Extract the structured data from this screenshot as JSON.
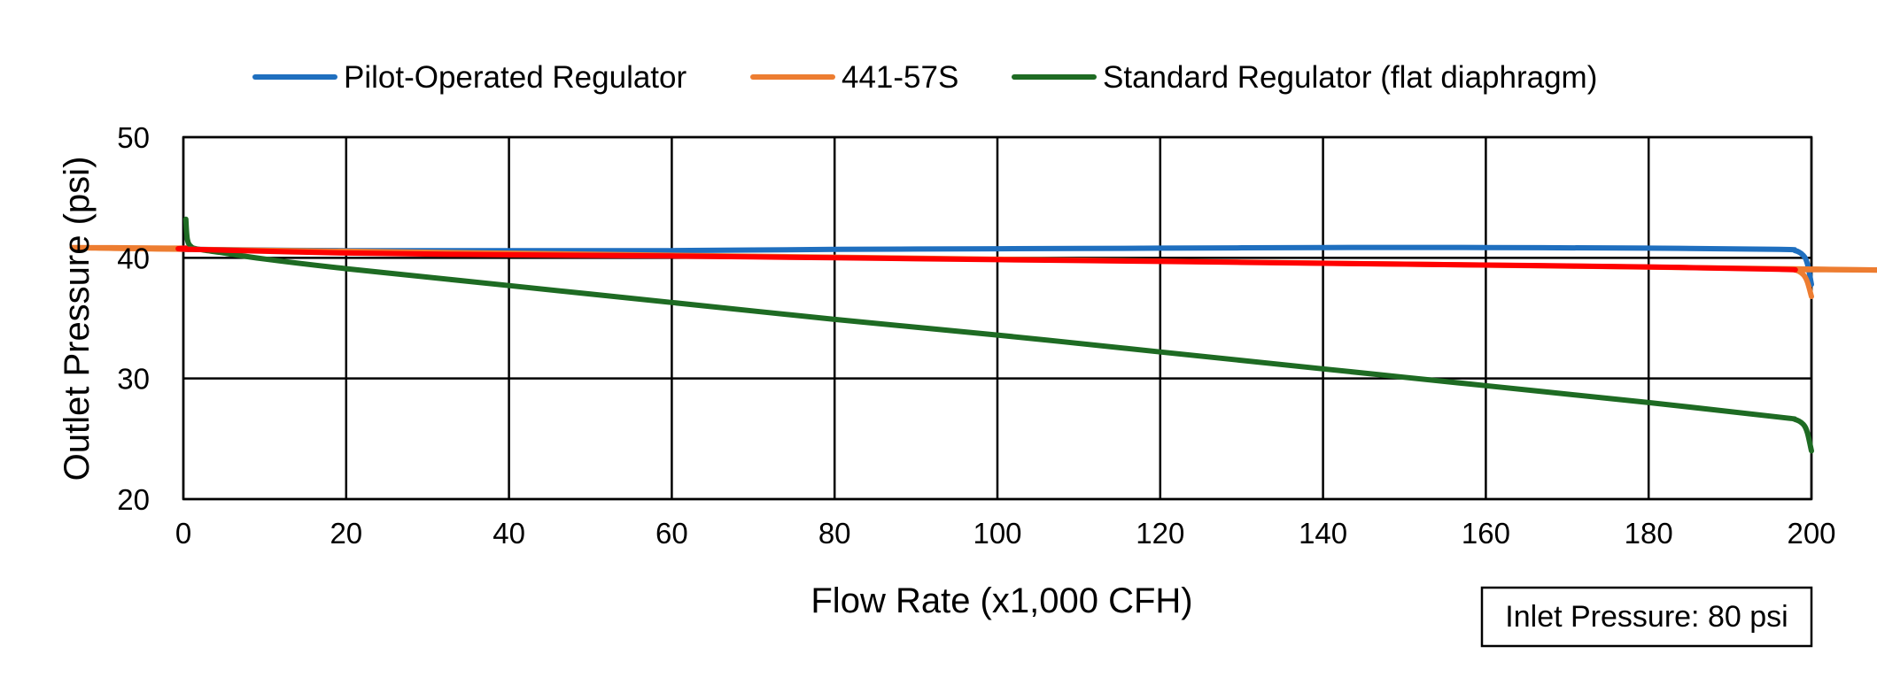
{
  "chart_data": {
    "type": "line",
    "xlabel": "Flow Rate (x1,000 CFH)",
    "ylabel": "Outlet Pressure (psi)",
    "xlim": [
      0,
      200
    ],
    "ylim": [
      20,
      50
    ],
    "x_ticks": [
      0,
      20,
      40,
      60,
      80,
      100,
      120,
      140,
      160,
      180,
      200
    ],
    "y_ticks": [
      20,
      30,
      40,
      50
    ],
    "grid": true,
    "legend_position": "top",
    "annotation": "Inlet Pressure: 80 psi",
    "legend": [
      {
        "name": "Pilot-Operated Regulator",
        "color": "#1f6fbf"
      },
      {
        "name": "441-57S",
        "color": "#ed7d31"
      },
      {
        "name": "Standard Regulator (flat diaphragm)",
        "color": "#1e6b23"
      }
    ],
    "series": [
      {
        "name": "Standard Regulator (flat diaphragm)",
        "color": "#1e6b23",
        "x": [
          0.3,
          0.5,
          1,
          2,
          5,
          10,
          20,
          40,
          60,
          80,
          100,
          120,
          140,
          160,
          180,
          196,
          198,
          199,
          199.5,
          200
        ],
        "y": [
          43.2,
          41.5,
          40.9,
          40.7,
          40.4,
          39.9,
          39.1,
          37.7,
          36.3,
          34.9,
          33.6,
          32.2,
          30.8,
          29.4,
          28.0,
          26.8,
          26.6,
          26.2,
          25.5,
          24.0
        ]
      },
      {
        "name": "Pilot-Operated Regulator",
        "color": "#1f6fbf",
        "x": [
          0.3,
          1,
          20,
          40,
          60,
          80,
          100,
          120,
          140,
          160,
          180,
          196,
          198,
          199,
          199.5,
          200
        ],
        "y": [
          40.8,
          40.7,
          40.6,
          40.6,
          40.6,
          40.7,
          40.75,
          40.8,
          40.85,
          40.85,
          40.8,
          40.7,
          40.6,
          40.2,
          39.5,
          37.8
        ]
      },
      {
        "name": "441-57S",
        "color": "#ed7d31",
        "x": [
          0.3,
          1,
          196,
          198,
          199,
          199.5,
          200
        ],
        "y": [
          40.8,
          40.7,
          39.1,
          39.0,
          38.6,
          38.0,
          36.8
        ]
      },
      {
        "name": "",
        "color": "#ff0000",
        "x": [
          0.3,
          1,
          20,
          40,
          60,
          80,
          100,
          120,
          140,
          160,
          180,
          196,
          198
        ],
        "y": [
          40.8,
          40.7,
          40.4,
          40.25,
          40.15,
          40.0,
          39.85,
          39.7,
          39.55,
          39.4,
          39.25,
          39.05,
          39.0
        ]
      }
    ]
  }
}
